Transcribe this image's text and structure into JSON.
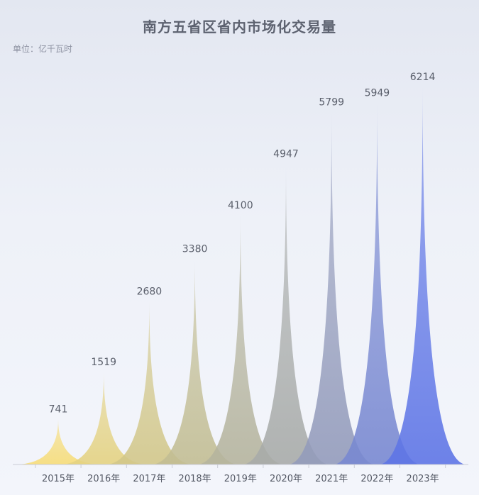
{
  "title": "南方五省区省内市场化交易量",
  "unit": "单位：亿千瓦时",
  "chart_data": {
    "type": "bar",
    "style": "pictorial-spike",
    "title": "南方五省区省内市场化交易量",
    "ylabel": "单位：亿千瓦时",
    "categories": [
      "2015年",
      "2016年",
      "2017年",
      "2018年",
      "2019年",
      "2020年",
      "2021年",
      "2022年",
      "2023年"
    ],
    "values": [
      741,
      1519,
      2680,
      3380,
      4100,
      4947,
      5799,
      5949,
      6214
    ],
    "ylim": [
      0,
      6214
    ],
    "grid": false,
    "color_gradient": [
      "#f6dc78",
      "#c6c08f",
      "#a4a8ad",
      "#5e75e6"
    ]
  }
}
